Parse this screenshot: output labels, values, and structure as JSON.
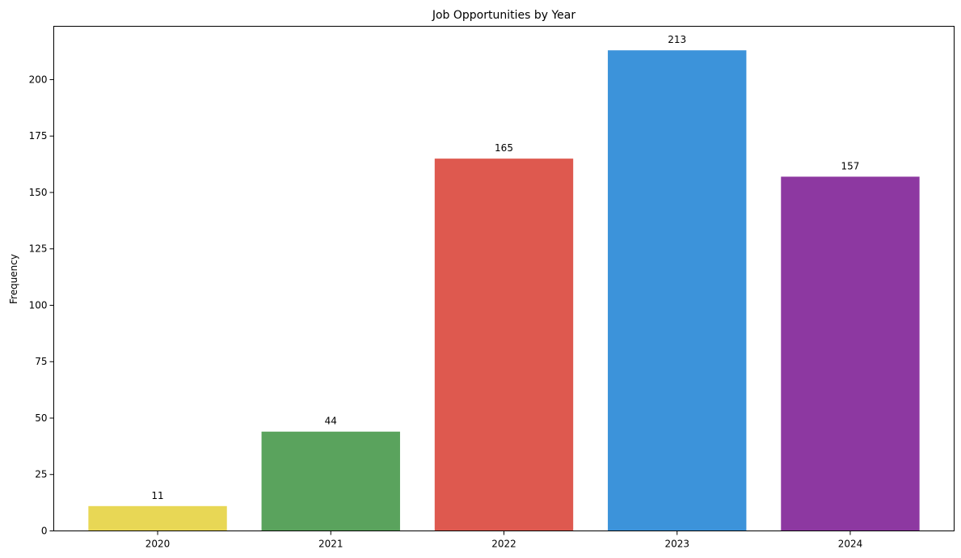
{
  "chart_data": {
    "type": "bar",
    "title": "Job Opportunities by Year",
    "xlabel": "",
    "ylabel": "Frequency",
    "categories": [
      "2020",
      "2021",
      "2022",
      "2023",
      "2024"
    ],
    "values": [
      11,
      44,
      165,
      213,
      157
    ],
    "data_labels": [
      "11",
      "44",
      "165",
      "213",
      "157"
    ],
    "colors": [
      "#e8d755",
      "#5aa35d",
      "#de594f",
      "#3c93da",
      "#8d38a1"
    ],
    "ylim": [
      0,
      223.65
    ],
    "yticks": [
      0,
      25,
      50,
      75,
      100,
      125,
      150,
      175,
      200
    ],
    "ytick_labels": [
      "0",
      "25",
      "50",
      "75",
      "100",
      "125",
      "150",
      "175",
      "200"
    ],
    "grid": false,
    "legend": "none"
  }
}
